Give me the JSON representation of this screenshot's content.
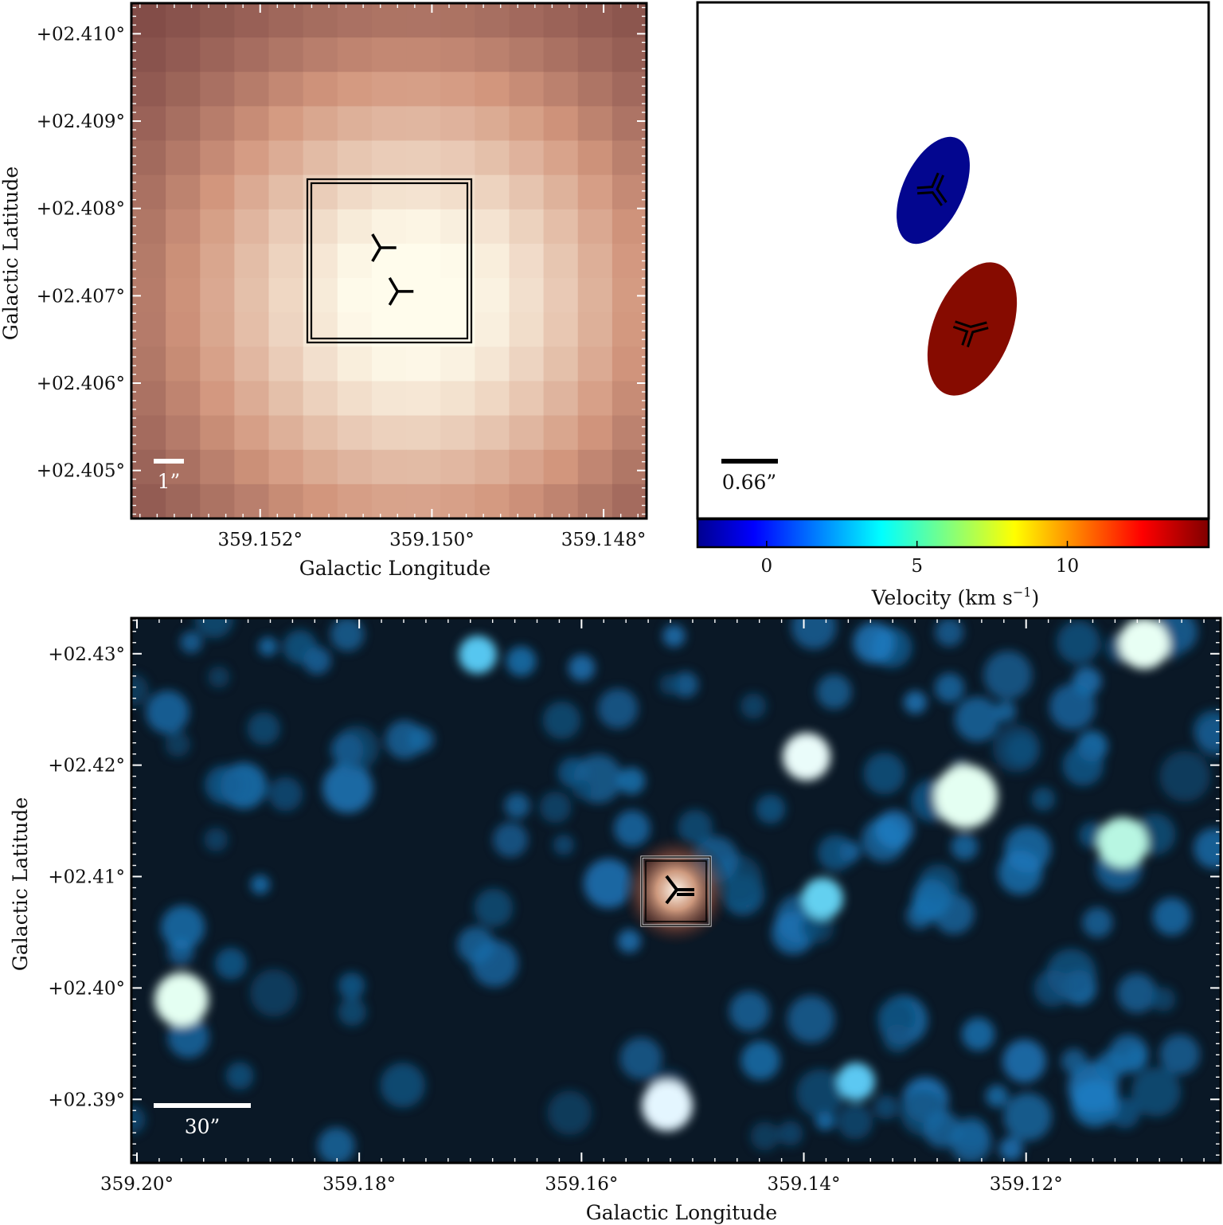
{
  "chart_data": [
    {
      "type": "image",
      "panel": "top-left",
      "xlabel": "Galactic Longitude",
      "ylabel": "Galactic Latitude",
      "xticks": [
        359.152,
        359.15,
        359.148
      ],
      "xtick_labels": [
        "359.152°",
        "359.150°",
        "359.148°"
      ],
      "xlim": [
        359.1535,
        359.1475
      ],
      "yticks": [
        2.41,
        2.409,
        2.408,
        2.407,
        2.406,
        2.405
      ],
      "ytick_labels": [
        "+02.410°",
        "+02.409°",
        "+02.408°",
        "+02.407°",
        "+02.406°",
        "+02.405°"
      ],
      "ylim": [
        2.40445,
        2.41035
      ],
      "scalebar_label": "1”",
      "markers": [
        {
          "l": 359.1506,
          "b": 2.40755
        },
        {
          "l": 359.1504,
          "b": 2.40705
        }
      ],
      "zoom_box": {
        "l_range": [
          359.1515,
          359.1496
        ],
        "b_range": [
          2.40646,
          2.40834
        ]
      },
      "colormap": "pink-to-white"
    },
    {
      "type": "scatter",
      "panel": "top-right",
      "scalebar_label": "0.66”",
      "points": [
        {
          "name": "blue component",
          "velocity": -2,
          "color": "#03068f"
        },
        {
          "name": "red component",
          "velocity": 14,
          "color": "#860b00"
        }
      ],
      "colorbar": {
        "label": "Velocity (km s",
        "label_sup": "−1",
        "label_end": ")",
        "range": [
          -2.3,
          14.7
        ],
        "ticks": [
          0,
          5,
          10
        ],
        "tick_labels": [
          "0",
          "5",
          "10"
        ],
        "colormap": "jet"
      }
    },
    {
      "type": "image",
      "panel": "bottom",
      "xlabel": "Galactic Longitude",
      "ylabel": "Galactic Latitude",
      "xticks": [
        359.2,
        359.18,
        359.16,
        359.14,
        359.12
      ],
      "xtick_labels": [
        "359.20°",
        "359.18°",
        "359.16°",
        "359.14°",
        "359.12°"
      ],
      "xlim": [
        359.2005,
        359.1025
      ],
      "yticks": [
        2.43,
        2.42,
        2.41,
        2.4,
        2.39
      ],
      "ytick_labels": [
        "+02.43°",
        "+02.42°",
        "+02.41°",
        "+02.40°",
        "+02.39°"
      ],
      "ylim": [
        2.3843,
        2.4332
      ],
      "scalebar_label": "30”",
      "target": {
        "l": 359.1507,
        "b": 2.4073
      },
      "zoom_box": {
        "l_range": [
          359.1535,
          359.1475
        ],
        "b_range": [
          2.40445,
          2.41035
        ]
      },
      "colormap": "rgb-composite"
    }
  ]
}
